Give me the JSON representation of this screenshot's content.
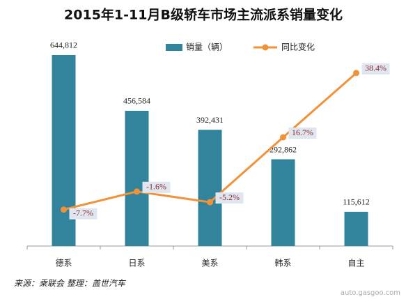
{
  "chart_data": {
    "type": "bar_line",
    "title": "2015年1-11月B级轿车市场主流派系销量变化",
    "categories": [
      "德系",
      "日系",
      "美系",
      "韩系",
      "自主"
    ],
    "series": [
      {
        "name": "销量（辆）",
        "type": "bar",
        "color": "#31849b",
        "values": [
          644812,
          456584,
          392431,
          292862,
          115612
        ],
        "value_labels": [
          "644,812",
          "456,584",
          "392,431",
          "292,862",
          "115,612"
        ]
      },
      {
        "name": "同比变化",
        "type": "line",
        "axis": "y2",
        "color": "#f0923a",
        "values": [
          -7.7,
          -1.6,
          -5.2,
          16.7,
          38.4
        ],
        "value_labels": [
          "-7.7%",
          "-1.6%",
          "-5.2%",
          "16.7%",
          "38.4%"
        ]
      }
    ],
    "ylim": [
      0,
      700000
    ],
    "y2lim": [
      -20,
      50
    ],
    "legend": "top",
    "source": "来源：乘联会   整理：盖世汽车",
    "watermark": "auto.gasgoo.com"
  }
}
